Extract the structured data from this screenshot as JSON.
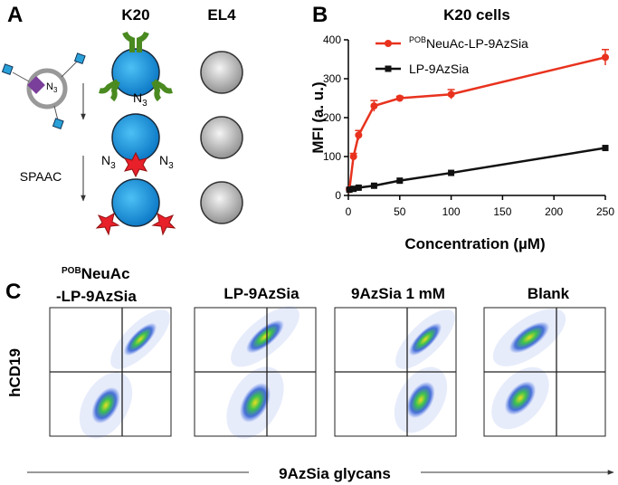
{
  "panel_labels": [
    "A",
    "B",
    "C"
  ],
  "panel_a": {
    "columns": [
      "K20",
      "EL4"
    ],
    "n3": {
      "text": "N",
      "sub": "3"
    },
    "step": "SPAAC"
  },
  "chart_data": {
    "type": "line",
    "title": "K20 cells",
    "xlabel": "Concentration (µM)",
    "ylabel": "MFI (a. u.)",
    "xlim": [
      0,
      250
    ],
    "ylim": [
      0,
      400
    ],
    "xticks": [
      0,
      50,
      100,
      150,
      200,
      250
    ],
    "yticks": [
      0,
      100,
      200,
      300,
      400
    ],
    "x": [
      1,
      5,
      10,
      25,
      50,
      100,
      250
    ],
    "series": [
      {
        "name_prefix": "POB",
        "name": "NeuAc-LP-9AzSia",
        "color": "#e8321e",
        "marker": "circle",
        "values": [
          15,
          100,
          155,
          230,
          250,
          260,
          355
        ],
        "errors": [
          3,
          8,
          12,
          14,
          5,
          12,
          20
        ]
      },
      {
        "name": "LP-9AzSia",
        "color": "#111111",
        "marker": "square",
        "values": [
          15,
          17,
          20,
          25,
          38,
          58,
          122
        ]
      }
    ]
  },
  "panel_c": {
    "first_title": {
      "sup": "POB",
      "line1": "NeuAc",
      "line2": "-LP-9AzSia"
    },
    "titles": [
      "LP-9AzSia",
      "9AzSia 1 mM",
      "Blank"
    ],
    "ylabel": "hCD19",
    "xlabel": "9AzSia glycans"
  }
}
